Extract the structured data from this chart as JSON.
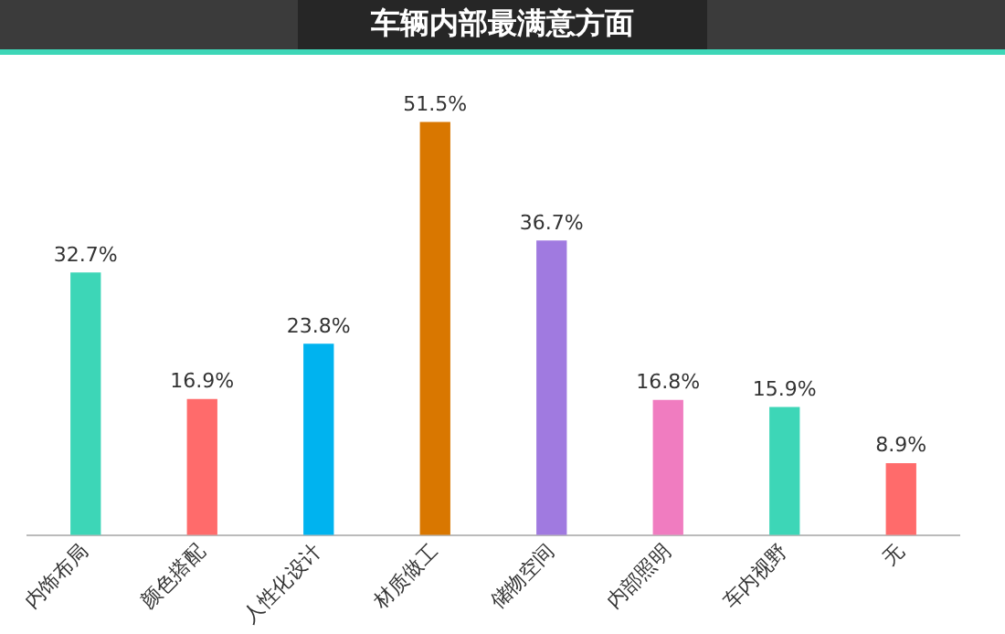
{
  "chart_data": {
    "type": "bar",
    "title": "车辆内部最满意方面",
    "categories": [
      "内饰布局",
      "颜色搭配",
      "人性化设计",
      "材质做工",
      "储物空间",
      "内部照明",
      "车内视野",
      "无"
    ],
    "values": [
      32.7,
      16.9,
      23.8,
      51.5,
      36.7,
      16.8,
      15.9,
      8.9
    ],
    "colors": [
      "#3dd6b7",
      "#ff6b6b",
      "#00b3ef",
      "#d97700",
      "#a07ae0",
      "#f07cc0",
      "#3dd6b7",
      "#ff6b6b"
    ],
    "value_labels": [
      "32.7%",
      "16.9%",
      "23.8%",
      "51.5%",
      "36.7%",
      "16.8%",
      "15.9%",
      "8.9%"
    ],
    "grid": false,
    "legend": false
  }
}
